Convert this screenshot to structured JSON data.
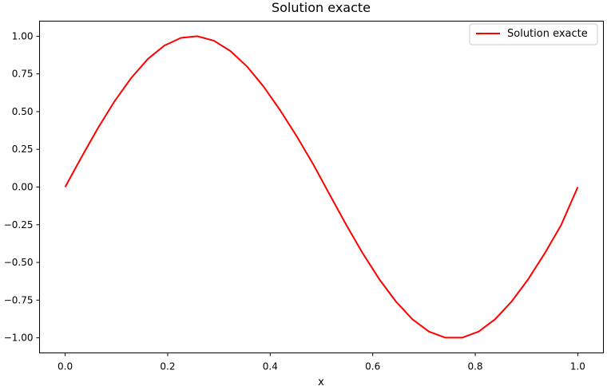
{
  "chart_data": {
    "type": "line",
    "title": "Solution exacte",
    "xlabel": "x",
    "ylabel": "",
    "xlim": [
      -0.05,
      1.05
    ],
    "ylim": [
      -1.1,
      1.1
    ],
    "xticks": [
      0.0,
      0.2,
      0.4,
      0.6,
      0.8,
      1.0
    ],
    "xtick_labels": [
      "0.0",
      "0.2",
      "0.4",
      "0.6",
      "0.8",
      "1.0"
    ],
    "yticks": [
      -1.0,
      -0.75,
      -0.5,
      -0.25,
      0.0,
      0.25,
      0.5,
      0.75,
      1.0
    ],
    "ytick_labels": [
      "−1.00",
      "−0.75",
      "−0.50",
      "−0.25",
      "0.00",
      "0.25",
      "0.50",
      "0.75",
      "1.00"
    ],
    "grid": false,
    "legend": {
      "position": "top-right",
      "entries": [
        "Solution exacte"
      ]
    },
    "series": [
      {
        "name": "Solution exacte",
        "color": "#ff0000",
        "x": [
          0.0,
          0.0323,
          0.0645,
          0.0968,
          0.129,
          0.1613,
          0.1935,
          0.2258,
          0.2581,
          0.2903,
          0.3226,
          0.3548,
          0.3871,
          0.4194,
          0.4516,
          0.4839,
          0.5161,
          0.5484,
          0.5806,
          0.6129,
          0.6452,
          0.6774,
          0.7097,
          0.7419,
          0.7742,
          0.8065,
          0.8387,
          0.871,
          0.9032,
          0.9355,
          0.9677,
          1.0
        ],
        "y": [
          0.0,
          0.201,
          0.394,
          0.571,
          0.724,
          0.849,
          0.938,
          0.989,
          1.0,
          0.97,
          0.901,
          0.799,
          0.666,
          0.509,
          0.337,
          0.151,
          -0.051,
          -0.251,
          -0.44,
          -0.612,
          -0.759,
          -0.877,
          -0.959,
          -0.999,
          -0.999,
          -0.959,
          -0.877,
          -0.759,
          -0.612,
          -0.44,
          -0.251,
          0.0
        ]
      }
    ]
  }
}
